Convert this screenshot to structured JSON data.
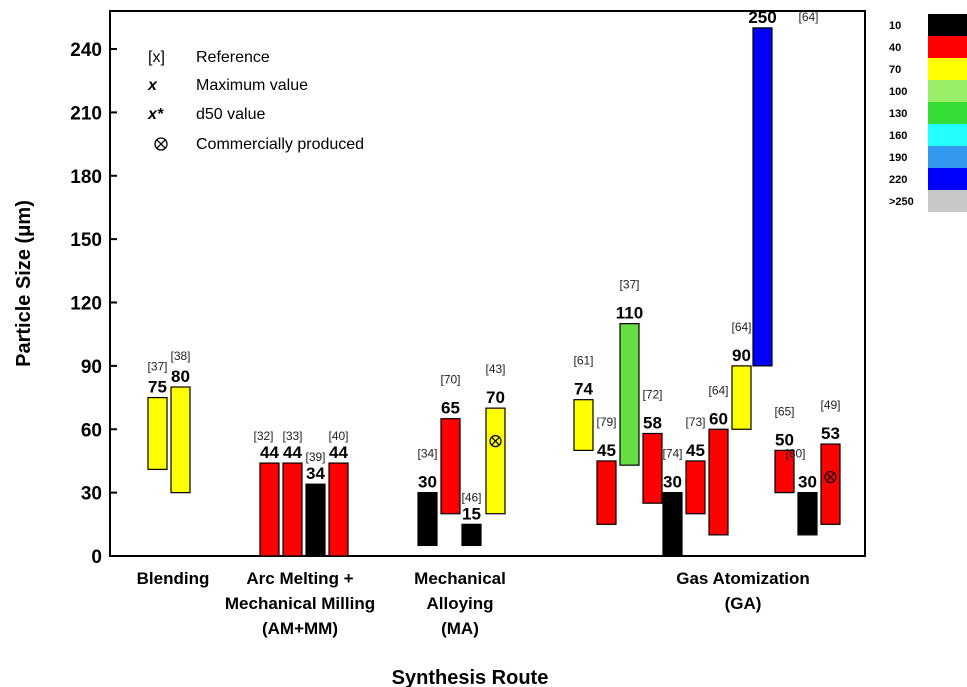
{
  "chart_data": {
    "type": "bar",
    "subtype": "floating-range",
    "ylabel": "Particle Size (μm)",
    "xlabel": "Synthesis Route",
    "ylim": [
      0,
      258
    ],
    "yticks": [
      0,
      30,
      60,
      90,
      120,
      150,
      180,
      210,
      240
    ],
    "groups": [
      {
        "lines": [
          "Blending"
        ]
      },
      {
        "lines": [
          "Arc Melting +",
          "Mechanical Milling",
          "(AM+MM)"
        ]
      },
      {
        "lines": [
          "Mechanical",
          "Alloying",
          "(MA)"
        ]
      },
      {
        "lines": [
          "Gas Atomization",
          "(GA)"
        ]
      }
    ],
    "bars": [
      {
        "group": 0,
        "min": 41,
        "max": 75,
        "label": "75",
        "ref": "[37]",
        "color": "#ffff00"
      },
      {
        "group": 0,
        "min": 30,
        "max": 80,
        "label": "80",
        "ref": "[38]",
        "color": "#ffff00"
      },
      {
        "group": 1,
        "min": 0,
        "max": 44,
        "label": "44",
        "ref": "[32]",
        "color": "#ff0000"
      },
      {
        "group": 1,
        "min": 0,
        "max": 44,
        "label": "44",
        "ref": "[33]",
        "color": "#ff0000"
      },
      {
        "group": 1,
        "min": 0,
        "max": 34,
        "label": "34",
        "ref": "[39]",
        "color": "#000000"
      },
      {
        "group": 1,
        "min": 0,
        "max": 44,
        "label": "44",
        "ref": "[40]",
        "color": "#ff0000"
      },
      {
        "group": 2,
        "min": 5,
        "max": 30,
        "label": "30",
        "ref": "[34]",
        "color": "#000000"
      },
      {
        "group": 2,
        "min": 20,
        "max": 65,
        "label": "65",
        "ref": "[70]",
        "color": "#ff0000"
      },
      {
        "group": 2,
        "min": 5,
        "max": 15,
        "label": "15",
        "ref": "[46]",
        "color": "#000000"
      },
      {
        "group": 2,
        "min": 20,
        "max": 70,
        "label": "70",
        "ref": "[43]",
        "color": "#ffff00",
        "commercial": true
      },
      {
        "group": 3,
        "min": 50,
        "max": 74,
        "label": "74",
        "ref": "[61]",
        "color": "#ffff00"
      },
      {
        "group": 3,
        "min": 15,
        "max": 45,
        "label": "45",
        "ref": "[79]",
        "color": "#ff0000"
      },
      {
        "group": 3,
        "min": 43,
        "max": 110,
        "label": "110",
        "ref": "[37]",
        "color": "#66dd44"
      },
      {
        "group": 3,
        "min": 25,
        "max": 58,
        "label": "58",
        "ref": "[72]",
        "color": "#ff0000"
      },
      {
        "group": 3,
        "min": 0,
        "max": 30,
        "label": "30",
        "ref": "[74]",
        "color": "#000000"
      },
      {
        "group": 3,
        "min": 20,
        "max": 45,
        "label": "45",
        "ref": "[73]",
        "color": "#ff0000"
      },
      {
        "group": 3,
        "min": 10,
        "max": 60,
        "label": "60",
        "ref": "[64]",
        "color": "#ff0000"
      },
      {
        "group": 3,
        "min": 60,
        "max": 90,
        "label": "90",
        "ref": "[64]",
        "color": "#ffff00"
      },
      {
        "group": 3,
        "min": 90,
        "max": 250,
        "label": "250",
        "ref": "[64]",
        "color": "#0000ff"
      },
      {
        "group": 3,
        "min": 30,
        "max": 50,
        "label": "50",
        "ref": "[65]",
        "color": "#ff0000"
      },
      {
        "group": 3,
        "min": 10,
        "max": 30,
        "label": "30",
        "ref": "[80]",
        "color": "#000000"
      },
      {
        "group": 3,
        "min": 15,
        "max": 53,
        "label": "53",
        "ref": "[49]",
        "color": "#ff0000",
        "commercial": true
      }
    ],
    "legend": {
      "placement": "top-left",
      "entries": [
        {
          "symbol": "[x]",
          "text": "Reference"
        },
        {
          "symbol": "x",
          "text": "Maximum value"
        },
        {
          "symbol": "x*",
          "text": "d50 value"
        },
        {
          "symbol": "⊗",
          "text": "Commercially produced"
        }
      ]
    },
    "color_scale": {
      "placement": "right",
      "entries": [
        {
          "label": "10",
          "color": "#000000"
        },
        {
          "label": "40",
          "color": "#ff0000"
        },
        {
          "label": "70",
          "color": "#ffff00"
        },
        {
          "label": "100",
          "color": "#99ee66"
        },
        {
          "label": "130",
          "color": "#33dd33"
        },
        {
          "label": "160",
          "color": "#22ffff"
        },
        {
          "label": "190",
          "color": "#3399ee"
        },
        {
          "label": "220",
          "color": "#0000ff"
        },
        {
          "label": ">250",
          "color": "#c8c8c8"
        }
      ]
    }
  }
}
